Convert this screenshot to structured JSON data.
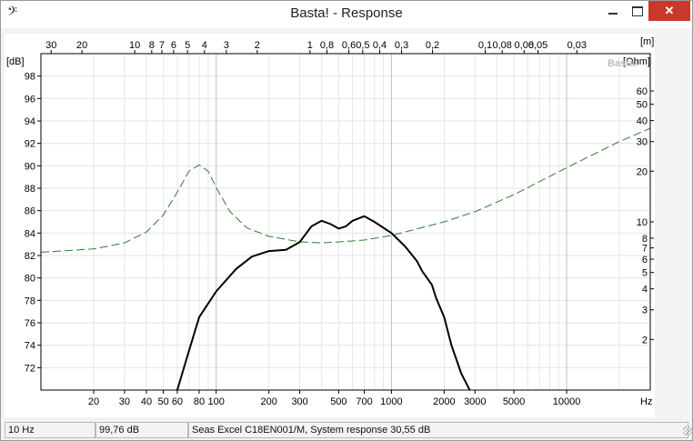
{
  "window": {
    "title": "Basta! - Response",
    "app_icon": "bass-clef-icon",
    "app_icon_glyph": "𝄢",
    "close_glyph": "✕"
  },
  "chart_data": {
    "type": "line",
    "watermark": "Basta!",
    "x_scale": "log",
    "xlabel": "Hz",
    "xlim": [
      10,
      30000
    ],
    "x_ticks": [
      20,
      30,
      40,
      50,
      60,
      80,
      100,
      200,
      300,
      500,
      700,
      1000,
      2000,
      3000,
      5000,
      10000
    ],
    "y_left": {
      "label": "[dB]",
      "ylim": [
        70,
        100
      ],
      "ticks": [
        72,
        74,
        76,
        78,
        80,
        82,
        84,
        86,
        88,
        90,
        92,
        94,
        96,
        98
      ]
    },
    "y_right": {
      "label": "[Ohm]",
      "scale": "log",
      "ylim": [
        1,
        100
      ],
      "ticks": [
        2,
        3,
        4,
        5,
        6,
        7,
        8,
        10,
        20,
        30,
        40,
        50,
        60
      ]
    },
    "top_axis": {
      "label": "[m]",
      "scale": "wavelength (343/f)",
      "ticks": [
        "30",
        "20",
        "10",
        "8",
        "7",
        "6",
        "5",
        "4",
        "3",
        "2",
        "1",
        "0,8",
        "0,6",
        "0,5",
        "0,4",
        "0,3",
        "0,2",
        "0,1",
        "0,08",
        "0,06",
        "0,05",
        "0,03"
      ]
    },
    "grid": true,
    "series": [
      {
        "role": "spl",
        "axis": "left",
        "color": "#000000",
        "style": "solid",
        "x": [
          60,
          70,
          80,
          100,
          130,
          160,
          200,
          250,
          300,
          350,
          400,
          450,
          500,
          550,
          600,
          700,
          800,
          1000,
          1200,
          1400,
          1500,
          1700,
          1800,
          2000,
          2200,
          2500,
          2800
        ],
        "y": [
          70.0,
          73.5,
          76.5,
          78.8,
          80.8,
          81.9,
          82.4,
          82.5,
          83.2,
          84.6,
          85.1,
          84.8,
          84.4,
          84.6,
          85.1,
          85.5,
          85.0,
          84.0,
          82.8,
          81.5,
          80.6,
          79.4,
          78.2,
          76.5,
          74.0,
          71.5,
          70.0
        ]
      },
      {
        "role": "impedance",
        "axis": "right",
        "color": "#2e7d32",
        "style": "dashed",
        "x": [
          10,
          20,
          30,
          40,
          50,
          60,
          70,
          80,
          90,
          100,
          120,
          150,
          200,
          300,
          400,
          500,
          700,
          1000,
          2000,
          3000,
          5000,
          10000,
          20000,
          30000
        ],
        "y": [
          6.6,
          6.9,
          7.5,
          8.7,
          11.0,
          15.0,
          20.0,
          21.8,
          20.0,
          16.0,
          11.5,
          9.2,
          8.2,
          7.6,
          7.5,
          7.6,
          7.8,
          8.3,
          10.0,
          11.5,
          14.5,
          21.0,
          30.0,
          36.0
        ]
      }
    ]
  },
  "status": {
    "frequency": "10 Hz",
    "level": "99,76 dB",
    "description": "Seas Excel C18EN001/M, System response 30,55 dB"
  }
}
